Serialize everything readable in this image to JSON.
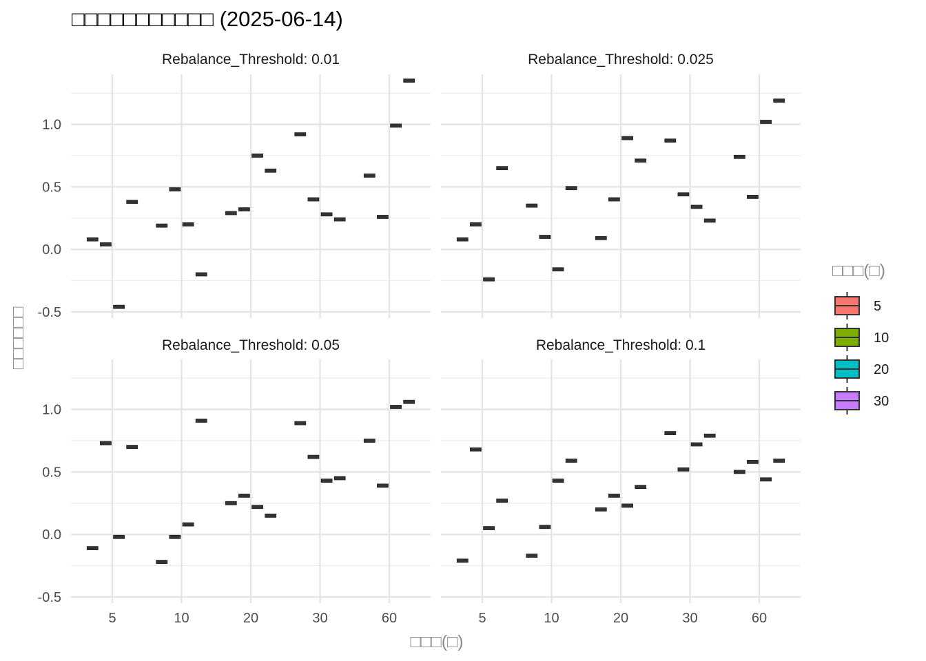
{
  "chart_data": {
    "type": "boxplot",
    "title": "□□□□□□□□□□□ (2025-06-14)",
    "xlabel": "□□□(□)",
    "ylabel": "□□□□□□",
    "x_categories": [
      "5",
      "10",
      "20",
      "30",
      "60"
    ],
    "ylim": [
      -0.55,
      1.4
    ],
    "yticks": [
      -0.5,
      0.0,
      0.5,
      1.0
    ],
    "ytick_labels": [
      "-0.5",
      "0.0",
      "0.5",
      "1.0"
    ],
    "grid": true,
    "legend": {
      "title": "□□□(□)",
      "position": "right",
      "items": [
        {
          "label": "5",
          "color": "#F8766D"
        },
        {
          "label": "10",
          "color": "#7CAE00"
        },
        {
          "label": "20",
          "color": "#00BFC4"
        },
        {
          "label": "30",
          "color": "#C77CFF"
        }
      ]
    },
    "panels": [
      {
        "strip": "Rebalance_Threshold: 0.01",
        "series": [
          {
            "name": "5",
            "values": [
              0.08,
              0.19,
              0.29,
              0.92,
              0.59
            ]
          },
          {
            "name": "10",
            "values": [
              0.04,
              0.48,
              0.32,
              0.4,
              0.26
            ]
          },
          {
            "name": "20",
            "values": [
              -0.46,
              0.2,
              0.75,
              0.28,
              0.99
            ]
          },
          {
            "name": "30",
            "values": [
              0.38,
              -0.2,
              0.63,
              0.24,
              1.35
            ]
          }
        ]
      },
      {
        "strip": "Rebalance_Threshold: 0.025",
        "series": [
          {
            "name": "5",
            "values": [
              0.08,
              0.35,
              0.09,
              0.87,
              0.74
            ]
          },
          {
            "name": "10",
            "values": [
              0.2,
              0.1,
              0.4,
              0.44,
              0.42
            ]
          },
          {
            "name": "20",
            "values": [
              -0.24,
              -0.16,
              0.89,
              0.34,
              1.02
            ]
          },
          {
            "name": "30",
            "values": [
              0.65,
              0.49,
              0.71,
              0.23,
              1.19
            ]
          }
        ]
      },
      {
        "strip": "Rebalance_Threshold: 0.05",
        "series": [
          {
            "name": "5",
            "values": [
              -0.11,
              -0.22,
              0.25,
              0.89,
              0.75
            ]
          },
          {
            "name": "10",
            "values": [
              0.73,
              -0.02,
              0.31,
              0.62,
              0.39
            ]
          },
          {
            "name": "20",
            "values": [
              -0.02,
              0.08,
              0.22,
              0.43,
              1.02
            ]
          },
          {
            "name": "30",
            "values": [
              0.7,
              0.91,
              0.15,
              0.45,
              1.06
            ]
          }
        ]
      },
      {
        "strip": "Rebalance_Threshold: 0.1",
        "series": [
          {
            "name": "5",
            "values": [
              -0.21,
              -0.17,
              0.2,
              0.81,
              0.5
            ]
          },
          {
            "name": "10",
            "values": [
              0.68,
              0.06,
              0.31,
              0.52,
              0.58
            ]
          },
          {
            "name": "20",
            "values": [
              0.05,
              0.43,
              0.23,
              0.72,
              0.44
            ]
          },
          {
            "name": "30",
            "values": [
              0.27,
              0.59,
              0.38,
              0.79,
              0.59
            ]
          }
        ]
      }
    ]
  }
}
